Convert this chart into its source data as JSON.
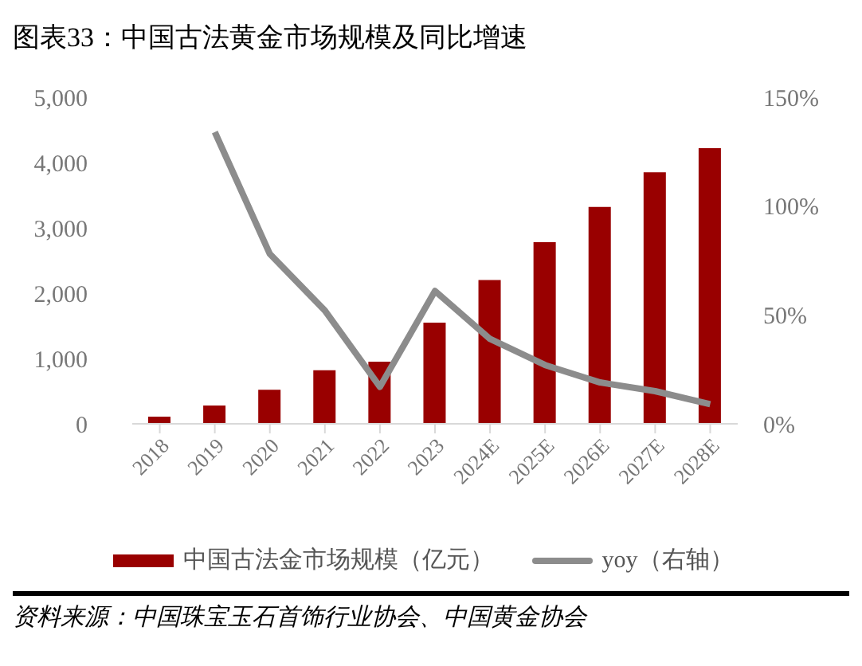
{
  "chart_data": {
    "type": "bar",
    "title": "图表33：中国古法黄金市场规模及同比增速",
    "categories": [
      "2018",
      "2019",
      "2020",
      "2021",
      "2022",
      "2023",
      "2024E",
      "2025E",
      "2026E",
      "2027E",
      "2028E"
    ],
    "series": [
      {
        "name": "中国古法金市场规模（亿元）",
        "color": "#990000",
        "values": [
          110,
          280,
          520,
          820,
          950,
          1550,
          2200,
          2780,
          3320,
          3850,
          4220
        ]
      },
      {
        "name": "yoy（右轴）",
        "type": "line",
        "axis": "y2",
        "color": "#8c8c8c",
        "values": [
          null,
          134,
          78,
          52,
          17,
          61,
          39,
          27,
          19,
          15,
          9
        ]
      }
    ],
    "ylim": [
      0,
      5000
    ],
    "yticks": [
      {
        "value": 0,
        "label": "0"
      },
      {
        "value": 1000,
        "label": "1,000"
      },
      {
        "value": 2000,
        "label": "2,000"
      },
      {
        "value": 3000,
        "label": "3,000"
      },
      {
        "value": 4000,
        "label": "4,000"
      },
      {
        "value": 5000,
        "label": "5,000"
      }
    ],
    "y2lim": [
      0,
      150
    ],
    "y2ticks": [
      {
        "value": 0,
        "label": "0%"
      },
      {
        "value": 50,
        "label": "50%"
      },
      {
        "value": 100,
        "label": "100%"
      },
      {
        "value": 150,
        "label": "150%"
      }
    ],
    "grid": false,
    "legend": "bottom",
    "marker": "none",
    "annotations": [
      "资料来源：中国珠宝玉石首饰行业协会、中国黄金协会"
    ]
  }
}
